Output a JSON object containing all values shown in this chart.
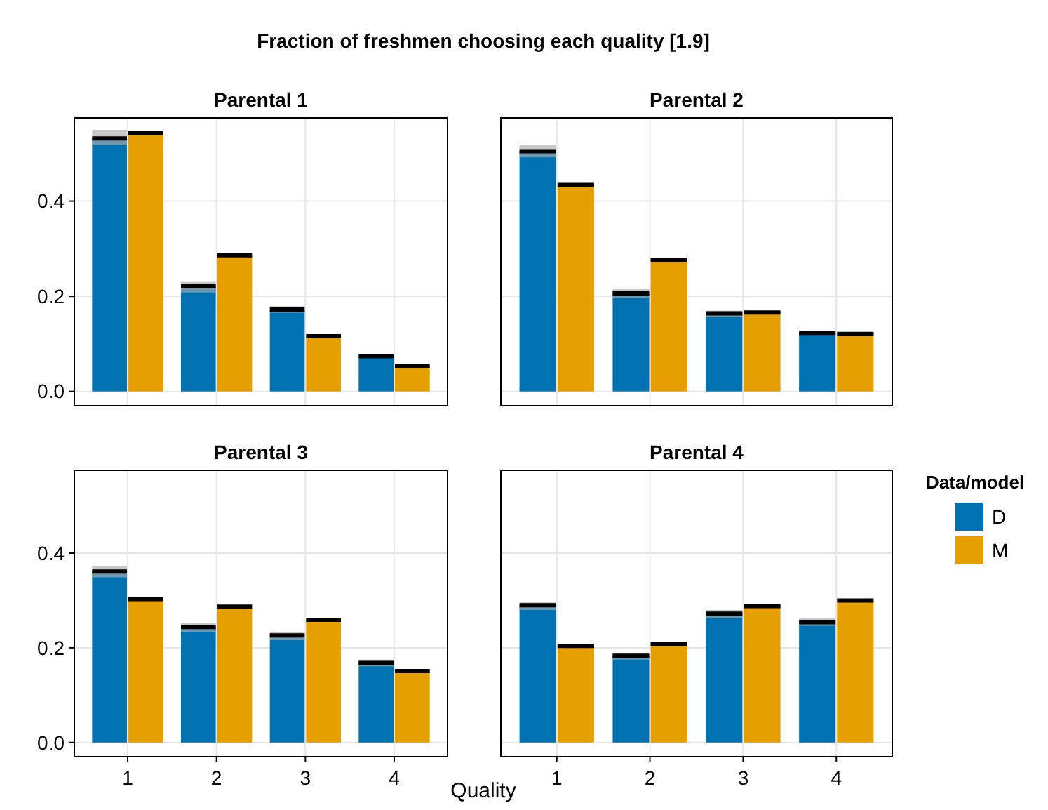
{
  "chart_data": [
    {
      "type": "bar",
      "title": "Parental 1",
      "annotations": [
        "Fraction of freshmen choosing each quality [1.9]"
      ],
      "categories": [
        "1",
        "2",
        "3",
        "4"
      ],
      "ylim": [
        -0.03,
        0.575
      ],
      "yticks": [
        {
          "value": 0,
          "label": "0.0"
        },
        0.2,
        0.4
      ],
      "grid": true,
      "tick_labels": "y",
      "series": [
        {
          "color": "#0072b2",
          "values": [
            0.532,
            0.221,
            0.172,
            0.074
          ],
          "errors": [
            [
              0.518,
              0.55
            ],
            [
              0.208,
              0.23
            ],
            [
              0.165,
              0.179
            ],
            null
          ]
        },
        {
          "color": "#e69f00",
          "values": [
            0.543,
            0.286,
            0.116,
            0.054
          ]
        }
      ]
    },
    {
      "type": "bar",
      "title": "Parental 2",
      "categories": [
        "1",
        "2",
        "3",
        "4"
      ],
      "ylim": [
        -0.03,
        0.575
      ],
      "yticks": [
        0,
        0.2,
        0.4
      ],
      "grid": true,
      "tick_labels": false,
      "series": [
        {
          "color": "#0072b2",
          "values": [
            0.505,
            0.206,
            0.164,
            0.123
          ],
          "errors": [
            [
              0.492,
              0.519
            ],
            [
              0.196,
              0.215
            ],
            [
              0.156,
              0.17
            ],
            null
          ]
        },
        {
          "color": "#e69f00",
          "values": [
            0.434,
            0.277,
            0.166,
            0.121
          ]
        }
      ]
    },
    {
      "type": "bar",
      "title": "Parental 3",
      "xlabel": "Quality",
      "categories": [
        "1",
        "2",
        "3",
        "4"
      ],
      "ylim": [
        -0.03,
        0.575
      ],
      "yticks": [
        {
          "value": 0,
          "label": "0.0"
        },
        0.2,
        0.4
      ],
      "grid": true,
      "series": [
        {
          "color": "#0072b2",
          "values": [
            0.361,
            0.244,
            0.226,
            0.168
          ],
          "errors": [
            [
              0.349,
              0.372
            ],
            [
              0.234,
              0.253
            ],
            [
              0.216,
              0.234
            ],
            [
              0.161,
              0.175
            ]
          ]
        },
        {
          "color": "#e69f00",
          "values": [
            0.303,
            0.287,
            0.259,
            0.151
          ]
        }
      ]
    },
    {
      "type": "bar",
      "title": "Parental 4",
      "legend_title": "Data/model",
      "legend": "right",
      "categories": [
        "1",
        "2",
        "3",
        "4"
      ],
      "ylim": [
        -0.03,
        0.575
      ],
      "yticks": [
        0,
        0.2,
        0.4
      ],
      "grid": true,
      "tick_labels": "x",
      "series": [
        {
          "name": "D",
          "color": "#0072b2",
          "values": [
            0.29,
            0.183,
            0.272,
            0.254
          ],
          "errors": [
            [
              0.28,
              0.297
            ],
            [
              0.175,
              0.189
            ],
            [
              0.263,
              0.28
            ],
            [
              0.246,
              0.263
            ]
          ]
        },
        {
          "name": "M",
          "color": "#e69f00",
          "values": [
            0.204,
            0.208,
            0.288,
            0.3
          ]
        }
      ]
    }
  ]
}
